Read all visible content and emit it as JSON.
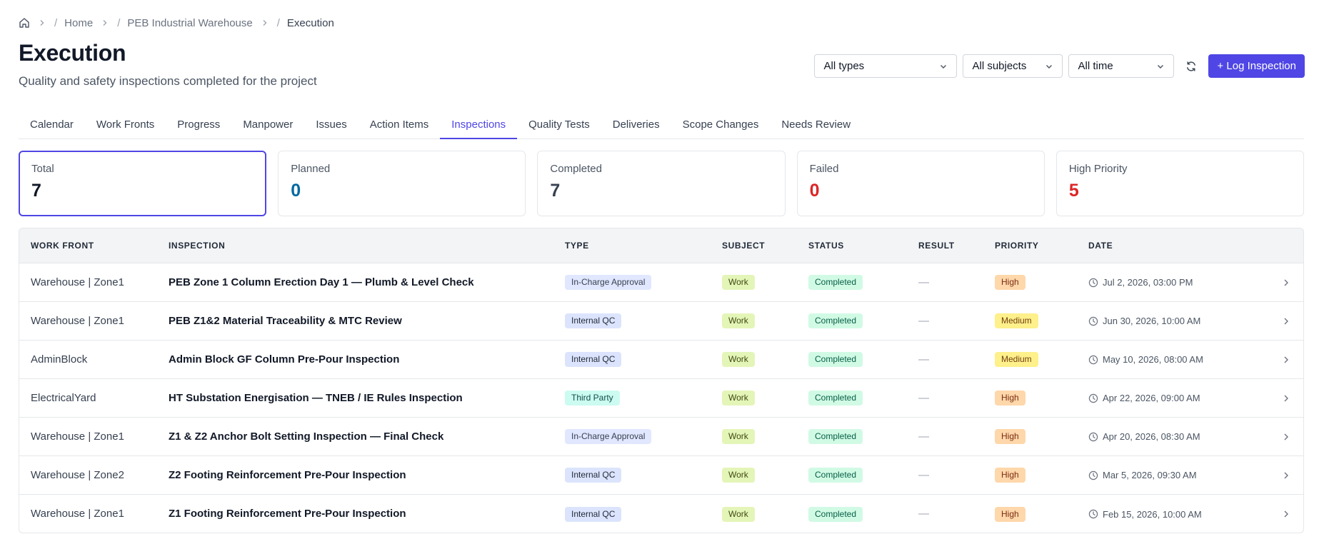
{
  "breadcrumb": {
    "home_icon": "home-icon",
    "items": [
      "Home",
      "PEB Industrial Warehouse",
      "Execution"
    ]
  },
  "page": {
    "title": "Execution",
    "subtitle": "Quality and safety inspections completed for the project"
  },
  "filters": {
    "types": "All types",
    "subjects": "All subjects",
    "time": "All time",
    "refresh_icon": "refresh-icon",
    "log_button": "+ Log Inspection"
  },
  "tabs": [
    "Calendar",
    "Work Fronts",
    "Progress",
    "Manpower",
    "Issues",
    "Action Items",
    "Inspections",
    "Quality Tests",
    "Deliveries",
    "Scope Changes",
    "Needs Review"
  ],
  "active_tab": "Inspections",
  "stats": [
    {
      "label": "Total",
      "value": "7",
      "color": "#111827"
    },
    {
      "label": "Planned",
      "value": "0",
      "color": "#0369a1"
    },
    {
      "label": "Completed",
      "value": "7",
      "color": "#374151"
    },
    {
      "label": "Failed",
      "value": "0",
      "color": "#dc2626"
    },
    {
      "label": "High Priority",
      "value": "5",
      "color": "#dc2626"
    }
  ],
  "colors": {
    "accent": "#4f46e5"
  },
  "table": {
    "headers": [
      "Work Front",
      "Inspection",
      "Type",
      "Subject",
      "Status",
      "Result",
      "Priority",
      "Date"
    ],
    "rows": [
      {
        "work_front": "Warehouse | Zone1",
        "inspection": "PEB Zone 1 Column Erection Day 1 — Plumb & Level Check",
        "type": "In-Charge Approval",
        "subject": "Work",
        "status": "Completed",
        "result": "—",
        "priority": "High",
        "date": "Jul 2, 2026, 03:00 PM"
      },
      {
        "work_front": "Warehouse | Zone1",
        "inspection": "PEB Z1&2 Material Traceability & MTC Review",
        "type": "Internal QC",
        "subject": "Work",
        "status": "Completed",
        "result": "—",
        "priority": "Medium",
        "date": "Jun 30, 2026, 10:00 AM"
      },
      {
        "work_front": "AdminBlock",
        "inspection": "Admin Block GF Column Pre-Pour Inspection",
        "type": "Internal QC",
        "subject": "Work",
        "status": "Completed",
        "result": "—",
        "priority": "Medium",
        "date": "May 10, 2026, 08:00 AM"
      },
      {
        "work_front": "ElectricalYard",
        "inspection": "HT Substation Energisation — TNEB / IE Rules Inspection",
        "type": "Third Party",
        "subject": "Work",
        "status": "Completed",
        "result": "—",
        "priority": "High",
        "date": "Apr 22, 2026, 09:00 AM"
      },
      {
        "work_front": "Warehouse | Zone1",
        "inspection": "Z1 & Z2 Anchor Bolt Setting Inspection — Final Check",
        "type": "In-Charge Approval",
        "subject": "Work",
        "status": "Completed",
        "result": "—",
        "priority": "High",
        "date": "Apr 20, 2026, 08:30 AM"
      },
      {
        "work_front": "Warehouse | Zone2",
        "inspection": "Z2 Footing Reinforcement Pre-Pour Inspection",
        "type": "Internal QC",
        "subject": "Work",
        "status": "Completed",
        "result": "—",
        "priority": "High",
        "date": "Mar 5, 2026, 09:30 AM"
      },
      {
        "work_front": "Warehouse | Zone1",
        "inspection": "Z1 Footing Reinforcement Pre-Pour Inspection",
        "type": "Internal QC",
        "subject": "Work",
        "status": "Completed",
        "result": "—",
        "priority": "High",
        "date": "Feb 15, 2026, 10:00 AM"
      }
    ]
  }
}
